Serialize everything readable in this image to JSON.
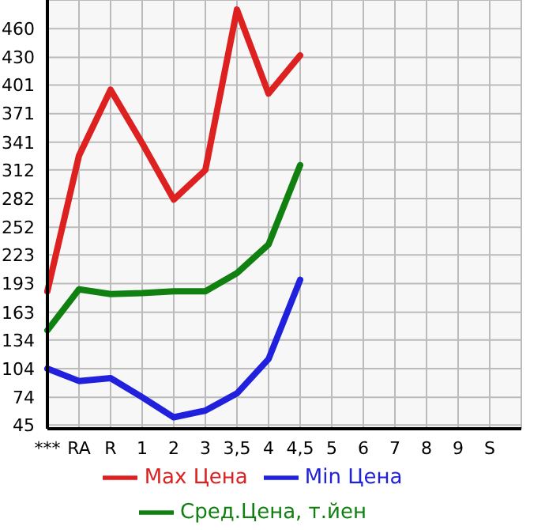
{
  "chart_data": {
    "type": "line",
    "categories": [
      "***",
      "RA",
      "R",
      "1",
      "2",
      "3",
      "3,5",
      "4",
      "4,5",
      "5",
      "6",
      "7",
      "8",
      "9",
      "S"
    ],
    "series": [
      {
        "name": "Max Цена",
        "color": "#dd2020",
        "values": [
          185,
          327,
          396,
          340,
          281,
          312,
          480,
          392,
          432,
          null,
          null,
          null,
          null,
          null,
          null
        ]
      },
      {
        "name": "Min Цена",
        "color": "#2020dd",
        "values": [
          104,
          91,
          94,
          74,
          53,
          60,
          78,
          114,
          197,
          null,
          null,
          null,
          null,
          null,
          null
        ]
      },
      {
        "name": "Сред.Цена, т.йен",
        "color": "#108010",
        "values": [
          144,
          187,
          182,
          183,
          185,
          185,
          204,
          234,
          317,
          null,
          null,
          null,
          null,
          null,
          null
        ]
      }
    ],
    "ylim": [
      41,
      490
    ],
    "yticks": [
      45,
      74,
      104,
      134,
      163,
      193,
      223,
      252,
      282,
      312,
      341,
      371,
      401,
      430,
      460
    ],
    "grid": true,
    "legend": "bottom",
    "marker": "none",
    "line_style": "solid"
  }
}
